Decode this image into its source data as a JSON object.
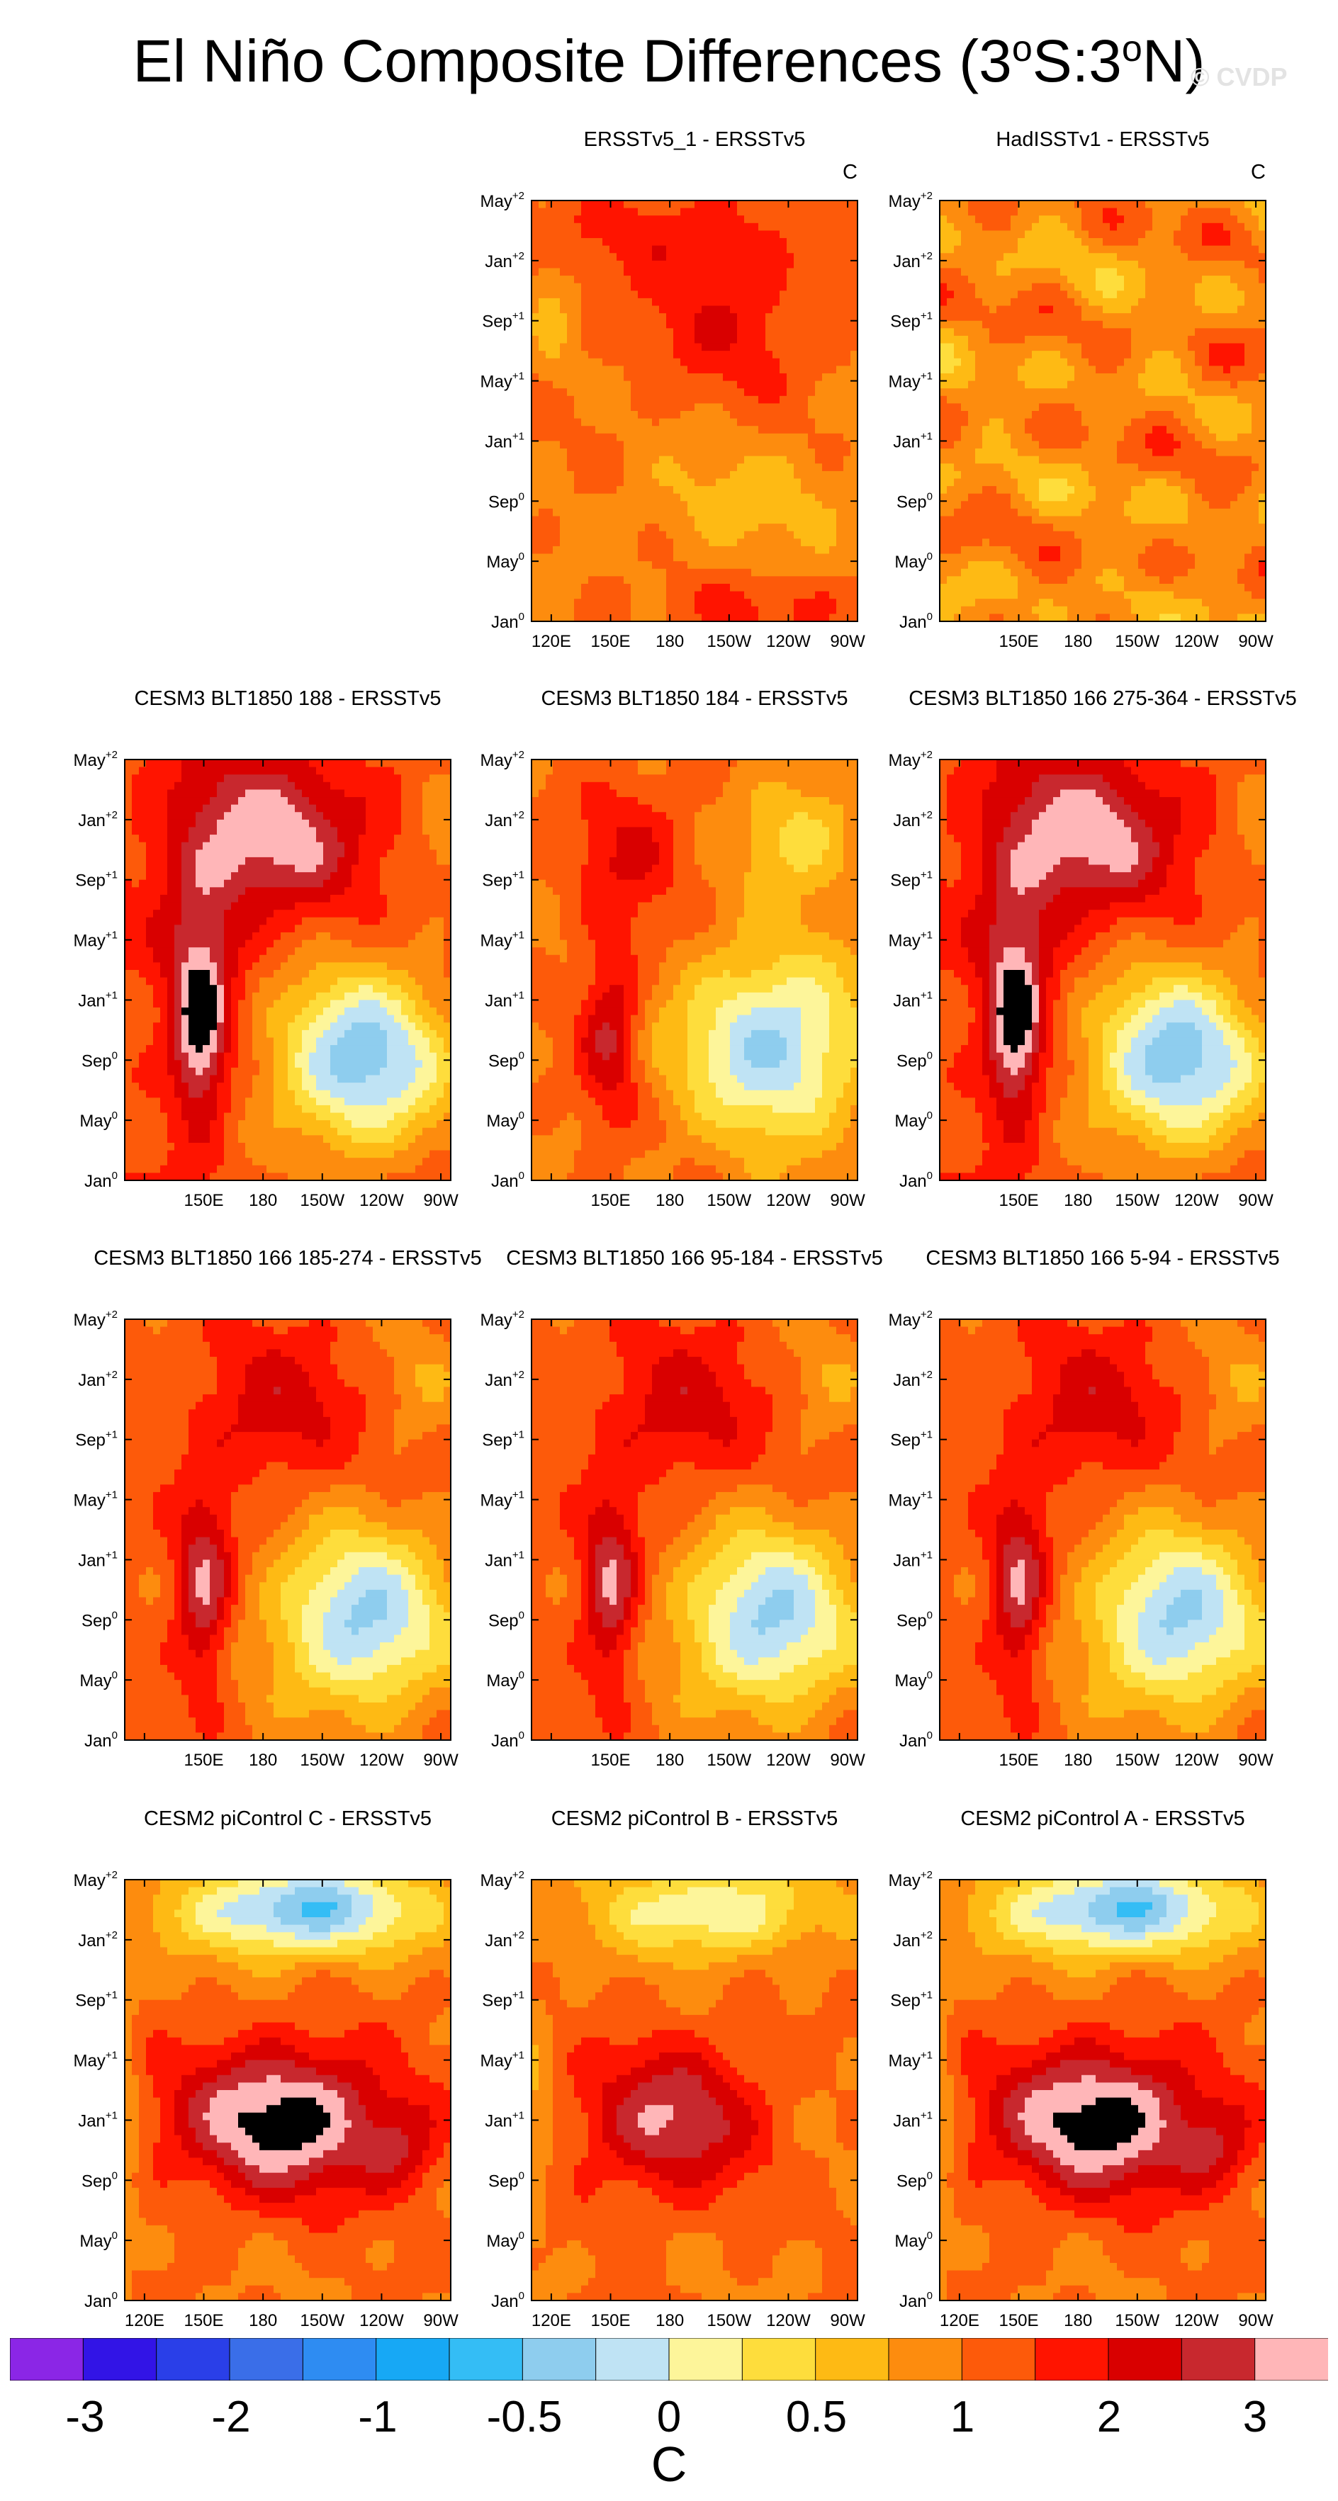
{
  "title": {
    "prefix": "El Niño Composite Differences (3",
    "sup1": "o",
    "mid": "S:3",
    "sup2": "o",
    "suffix": "N)"
  },
  "watermark": "© CVDP",
  "units": "C",
  "chart_data": {
    "type": "heatmap",
    "description_axes": {
      "x_ticks": [
        "120E",
        "150E",
        "180",
        "150W",
        "120W",
        "90W"
      ],
      "x_tick_lons": [
        120,
        150,
        180,
        210,
        240,
        270
      ],
      "x_range_lon": [
        110,
        275
      ],
      "y_ticks": [
        {
          "label": "Jan",
          "sup": "0",
          "month": 0
        },
        {
          "label": "May",
          "sup": "0",
          "month": 4
        },
        {
          "label": "Sep",
          "sup": "0",
          "month": 8
        },
        {
          "label": "Jan",
          "sup": "+1",
          "month": 12
        },
        {
          "label": "May",
          "sup": "+1",
          "month": 16
        },
        {
          "label": "Sep",
          "sup": "+1",
          "month": 20
        },
        {
          "label": "Jan",
          "sup": "+2",
          "month": 24
        },
        {
          "label": "May",
          "sup": "+2",
          "month": 28
        }
      ]
    },
    "colorbar": {
      "labels": [
        "-3",
        "-2",
        "-1",
        "-0.5",
        "0",
        "0.5",
        "1",
        "2",
        "3"
      ],
      "levels": [
        -3,
        -2.75,
        -2.5,
        -2.25,
        -2,
        -1.75,
        -1.5,
        -1.25,
        -1,
        -0.75,
        -0.5,
        -0.25,
        0,
        0.25,
        0.5,
        0.75,
        1,
        1.25,
        1.5,
        1.75,
        2,
        2.25,
        2.5,
        2.75,
        3
      ],
      "colors": [
        "#8b26e6",
        "#3214e6",
        "#2a3fe8",
        "#3a6ee8",
        "#2e8cf2",
        "#17a8f5",
        "#34bdf5",
        "#8ecdee",
        "#bfe3f4",
        "#fdf59a",
        "#fedd3c",
        "#feba14",
        "#fd8c0e",
        "#fd5a0a",
        "#ff1400",
        "#d90000",
        "#c8282e",
        "#ffb6b8"
      ]
    },
    "panels": [
      {
        "title": "ERSSTv5_1 - ERSSTv5",
        "show_units": true,
        "x_labels_start": 0,
        "pattern": "obs1"
      },
      {
        "title": "HadISSTv1 - ERSSTv5",
        "show_units": true,
        "x_labels_start": 1,
        "pattern": "obs2"
      },
      {
        "title": "CESM3 BLT1850 188 - ERSSTv5",
        "show_units": false,
        "x_labels_start": 1,
        "pattern": "blt_strong"
      },
      {
        "title": "CESM3 BLT1850 184 - ERSSTv5",
        "show_units": false,
        "x_labels_start": 1,
        "pattern": "blt_weak"
      },
      {
        "title": "CESM3 BLT1850 166 275-364 - ERSSTv5",
        "show_units": false,
        "x_labels_start": 1,
        "pattern": "blt_strong"
      },
      {
        "title": "CESM3 BLT1850 166 185-274 - ERSSTv5",
        "show_units": false,
        "x_labels_start": 1,
        "pattern": "blt_mid"
      },
      {
        "title": "CESM3 BLT1850 166 95-184 - ERSSTv5",
        "show_units": false,
        "x_labels_start": 1,
        "pattern": "blt_mid"
      },
      {
        "title": "CESM3 BLT1850 166 5-94 - ERSSTv5",
        "show_units": false,
        "x_labels_start": 1,
        "pattern": "blt_mid"
      },
      {
        "title": "CESM2 piControl C - ERSSTv5",
        "show_units": false,
        "x_labels_start": 0,
        "pattern": "cesm2_strong"
      },
      {
        "title": "CESM2 piControl B - ERSSTv5",
        "show_units": false,
        "x_labels_start": 0,
        "pattern": "cesm2_weak"
      },
      {
        "title": "CESM2 piControl A - ERSSTv5",
        "show_units": false,
        "x_labels_start": 0,
        "pattern": "cesm2_strong"
      }
    ]
  }
}
